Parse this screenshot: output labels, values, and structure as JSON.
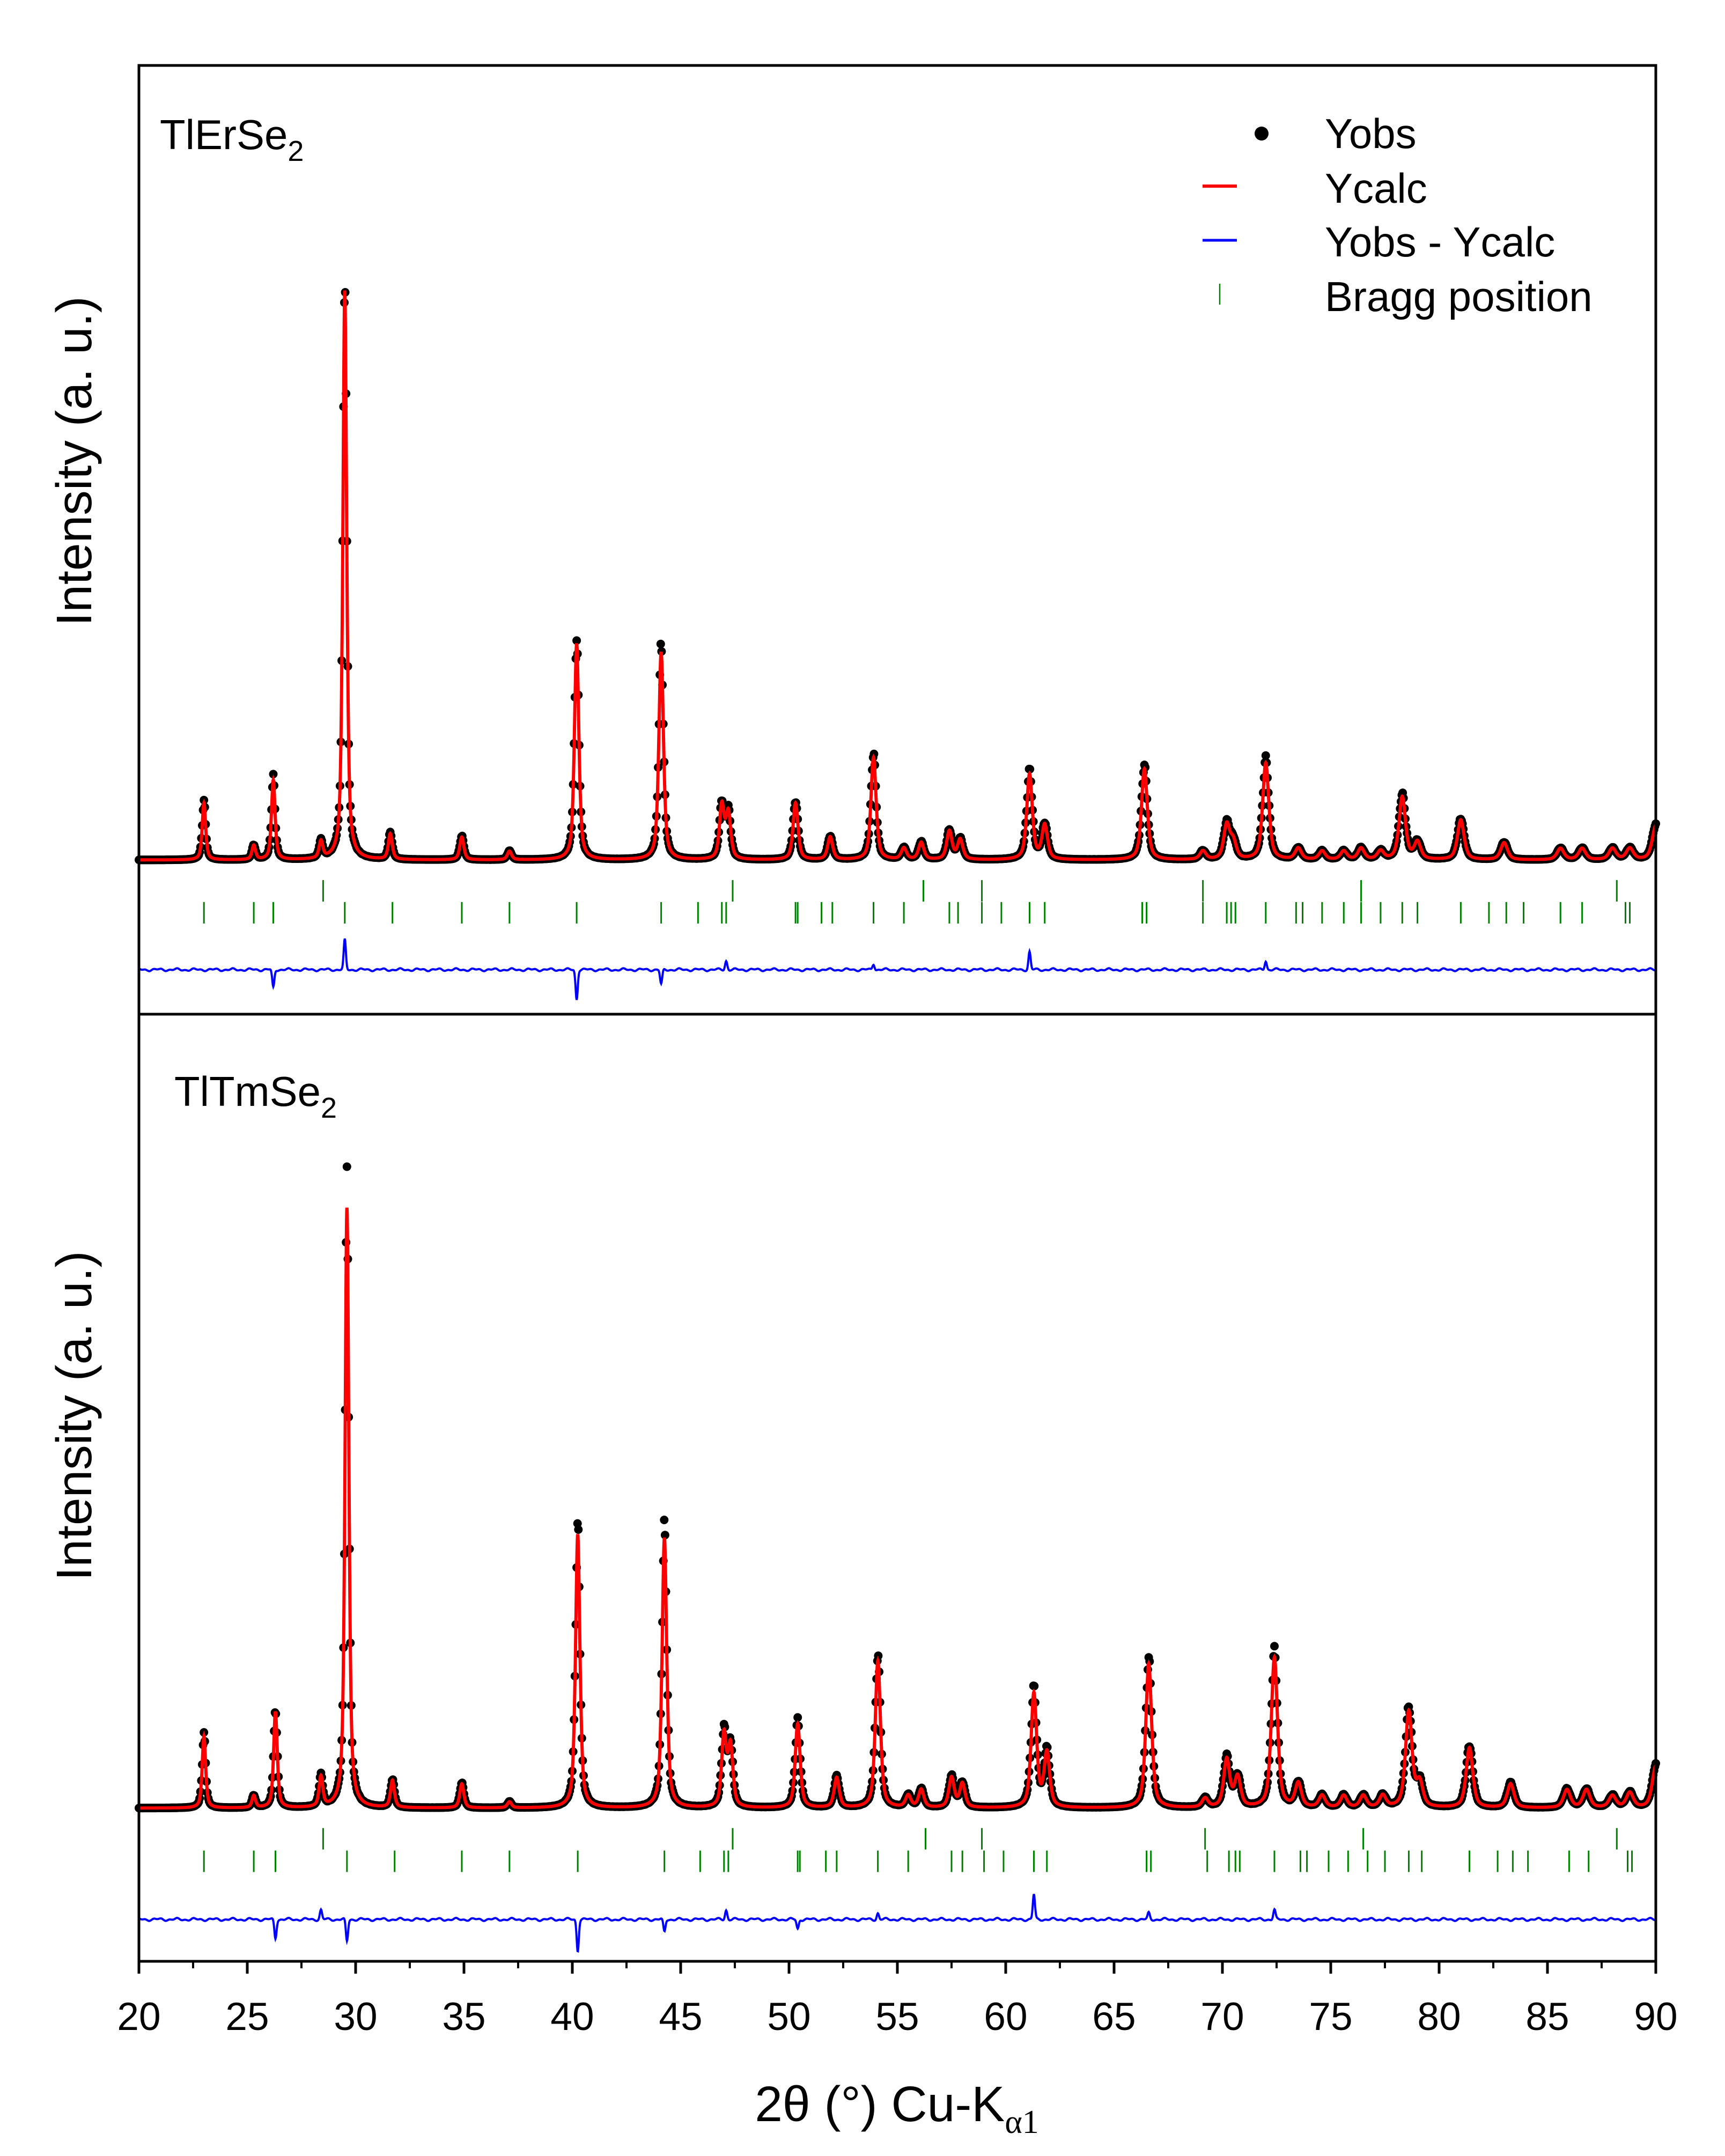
{
  "chart_data": [
    {
      "type": "scatter",
      "panel_label": {
        "main": "TlErSe",
        "sub": "2"
      },
      "ylabel": "Intensity (a. u.)",
      "xlim": [
        20,
        90
      ],
      "ylim": [
        -26,
        134
      ],
      "peaks": [
        [
          23.0,
          10
        ],
        [
          25.3,
          2.5
        ],
        [
          26.2,
          14
        ],
        [
          28.4,
          3
        ],
        [
          29.5,
          100
        ],
        [
          31.6,
          4.5
        ],
        [
          34.9,
          4
        ],
        [
          37.1,
          1.5
        ],
        [
          40.2,
          38
        ],
        [
          44.1,
          36.5
        ],
        [
          46.9,
          9.4
        ],
        [
          47.2,
          8
        ],
        [
          50.3,
          10
        ],
        [
          51.9,
          4
        ],
        [
          53.9,
          18
        ],
        [
          55.3,
          2
        ],
        [
          56.1,
          3
        ],
        [
          57.4,
          5
        ],
        [
          57.9,
          3.5
        ],
        [
          61.1,
          15
        ],
        [
          61.8,
          6
        ],
        [
          66.4,
          16
        ],
        [
          69.1,
          1.5
        ],
        [
          70.2,
          6
        ],
        [
          70.5,
          3
        ],
        [
          72.0,
          17
        ],
        [
          73.5,
          2
        ],
        [
          74.6,
          1.5
        ],
        [
          75.6,
          1.5
        ],
        [
          76.4,
          2
        ],
        [
          77.3,
          1.5
        ],
        [
          78.3,
          11
        ],
        [
          79.0,
          3
        ],
        [
          81.0,
          7
        ],
        [
          83.0,
          3
        ],
        [
          85.6,
          2
        ],
        [
          86.6,
          2
        ],
        [
          88.0,
          2
        ],
        [
          88.8,
          2
        ],
        [
          90.0,
          6
        ]
      ],
      "difference_features": [
        [
          26.2,
          -3
        ],
        [
          29.5,
          5
        ],
        [
          40.2,
          -5
        ],
        [
          44.1,
          -2.5
        ],
        [
          47.1,
          1.5
        ],
        [
          53.9,
          1
        ],
        [
          61.1,
          3
        ],
        [
          72.0,
          1.5
        ]
      ],
      "bragg_positions_phase1": [
        28.5,
        47.4,
        56.2,
        58.9,
        69.1,
        76.4,
        88.2
      ],
      "bragg_positions_phase2": [
        23.0,
        25.3,
        26.2,
        29.5,
        31.7,
        34.9,
        37.1,
        40.2,
        44.1,
        45.8,
        46.9,
        47.1,
        50.3,
        50.4,
        51.5,
        52.0,
        53.9,
        55.3,
        57.4,
        57.8,
        58.9,
        59.8,
        61.1,
        61.8,
        66.3,
        66.5,
        69.1,
        70.2,
        70.4,
        70.6,
        72.0,
        73.4,
        73.7,
        74.6,
        75.6,
        76.4,
        77.3,
        78.3,
        79.0,
        81.0,
        82.3,
        83.1,
        83.9,
        85.6,
        86.6,
        88.6,
        88.8
      ],
      "legend": {
        "placement": "top-right",
        "items": [
          "Yobs",
          "Ycalc",
          "Yobs - Ycalc",
          "Bragg position"
        ]
      }
    },
    {
      "type": "scatter",
      "panel_label": {
        "main": "TlTmSe",
        "sub": "2"
      },
      "ylabel": "Intensity (a. u.)",
      "xlim": [
        20,
        90
      ],
      "ylim": [
        -24.5,
        127
      ],
      "peaks": [
        [
          23.0,
          12
        ],
        [
          25.3,
          2
        ],
        [
          26.3,
          16
        ],
        [
          28.4,
          5
        ],
        [
          29.6,
          100
        ],
        [
          31.7,
          4.5
        ],
        [
          34.9,
          4
        ],
        [
          37.1,
          1
        ],
        [
          40.25,
          45.6
        ],
        [
          44.25,
          45
        ],
        [
          47.0,
          12
        ],
        [
          47.3,
          10
        ],
        [
          50.4,
          14
        ],
        [
          52.2,
          5
        ],
        [
          54.1,
          24.5
        ],
        [
          55.5,
          2
        ],
        [
          56.1,
          3
        ],
        [
          57.5,
          5
        ],
        [
          58.0,
          4
        ],
        [
          61.3,
          19
        ],
        [
          61.9,
          9
        ],
        [
          66.6,
          24
        ],
        [
          69.2,
          1.5
        ],
        [
          70.2,
          8
        ],
        [
          70.7,
          5
        ],
        [
          72.4,
          25
        ],
        [
          73.5,
          4
        ],
        [
          74.6,
          2
        ],
        [
          75.6,
          2
        ],
        [
          76.5,
          2
        ],
        [
          77.4,
          2
        ],
        [
          78.6,
          16
        ],
        [
          79.1,
          4
        ],
        [
          81.4,
          10
        ],
        [
          83.3,
          4
        ],
        [
          85.9,
          3
        ],
        [
          86.8,
          3
        ],
        [
          88.0,
          2
        ],
        [
          88.8,
          2.5
        ],
        [
          90.0,
          7
        ]
      ],
      "difference_features": [
        [
          26.3,
          -3
        ],
        [
          28.4,
          1.5
        ],
        [
          29.6,
          -3.5
        ],
        [
          40.25,
          -5
        ],
        [
          44.25,
          -2
        ],
        [
          47.1,
          1.5
        ],
        [
          50.4,
          -1.5
        ],
        [
          54.1,
          1
        ],
        [
          61.3,
          4
        ],
        [
          66.6,
          1
        ],
        [
          72.4,
          1.5
        ]
      ],
      "bragg_positions_phase1": [
        28.5,
        47.4,
        56.3,
        58.9,
        69.2,
        76.5,
        88.2
      ],
      "bragg_positions_phase2": [
        23.0,
        25.3,
        26.3,
        29.6,
        31.8,
        34.9,
        37.1,
        40.25,
        44.25,
        45.9,
        47.0,
        47.2,
        50.4,
        50.5,
        51.7,
        52.2,
        54.1,
        55.5,
        57.5,
        58.0,
        59.0,
        59.9,
        61.3,
        61.9,
        66.5,
        66.7,
        69.3,
        70.3,
        70.6,
        70.8,
        72.4,
        73.6,
        73.9,
        74.9,
        75.8,
        76.7,
        77.5,
        78.6,
        79.2,
        81.4,
        82.7,
        83.4,
        84.1,
        86.0,
        86.9,
        88.7,
        88.9
      ]
    }
  ],
  "xaxis": {
    "label_main": "2θ (°) Cu-K",
    "label_sub": "α1",
    "ticks": [
      "20",
      "25",
      "30",
      "35",
      "40",
      "45",
      "50",
      "55",
      "60",
      "65",
      "70",
      "75",
      "80",
      "85",
      "90"
    ]
  },
  "colors": {
    "obs": "#000000",
    "calc": "#ff0000",
    "diff": "#0000ff",
    "bragg": "#008000",
    "frame": "#000000"
  }
}
